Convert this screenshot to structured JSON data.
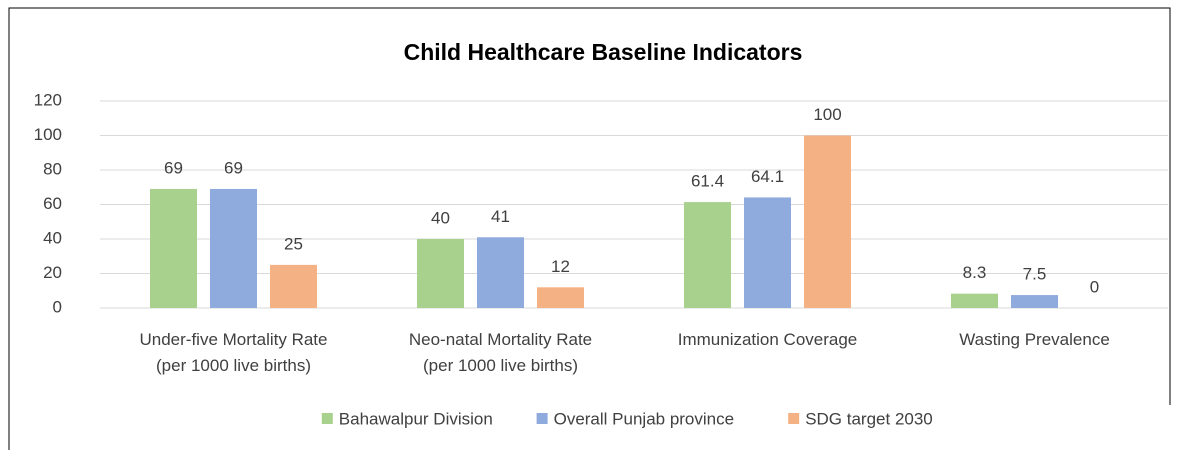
{
  "chart_data": {
    "type": "bar",
    "title": "Child Healthcare Baseline Indicators",
    "categories": [
      "Under-five Mortality Rate\n(per 1000 live births)",
      "Neo-natal Mortality Rate\n(per 1000 live births)",
      "Immunization Coverage",
      "Wasting Prevalence"
    ],
    "series": [
      {
        "name": "Bahawalpur Division",
        "color": "#a9d18e",
        "values": [
          69,
          40,
          61.4,
          8.3
        ]
      },
      {
        "name": "Overall Punjab province",
        "color": "#8faadc",
        "values": [
          69,
          41,
          64.1,
          7.5
        ]
      },
      {
        "name": "SDG target 2030",
        "color": "#f4b183",
        "values": [
          25,
          12,
          100,
          0
        ]
      }
    ],
    "ylim": [
      0,
      120
    ],
    "yticks": [
      0,
      20,
      40,
      60,
      80,
      100,
      120
    ],
    "grid": true,
    "legend": "bottom"
  }
}
